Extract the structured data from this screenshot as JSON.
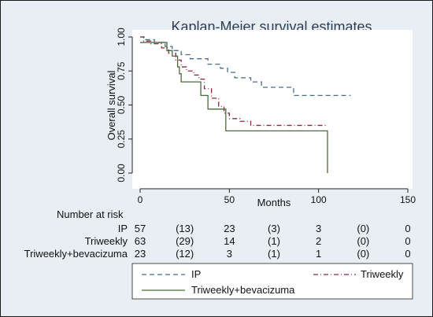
{
  "chart_data": {
    "type": "line",
    "title": "Kaplan-Meier survival estimates",
    "xlabel": "Months",
    "ylabel": "Overall survival",
    "xlim": [
      0,
      150
    ],
    "ylim": [
      0,
      1
    ],
    "x_ticks": [
      "0",
      "50",
      "100",
      "150"
    ],
    "y_ticks": [
      "0.00",
      "0.25",
      "0.50",
      "0.75",
      "1.00"
    ],
    "grid": false,
    "series": [
      {
        "name": "IP",
        "color": "#4a6a8c",
        "dash": "dashed",
        "points": [
          [
            0,
            1.0
          ],
          [
            3,
            0.98
          ],
          [
            8,
            0.96
          ],
          [
            14,
            0.93
          ],
          [
            18,
            0.9
          ],
          [
            23,
            0.87
          ],
          [
            28,
            0.84
          ],
          [
            38,
            0.8
          ],
          [
            45,
            0.77
          ],
          [
            49,
            0.74
          ],
          [
            53,
            0.7
          ],
          [
            62,
            0.67
          ],
          [
            68,
            0.63
          ],
          [
            78,
            0.63
          ],
          [
            86,
            0.57
          ],
          [
            90,
            0.57
          ],
          [
            118,
            0.57
          ]
        ]
      },
      {
        "name": "Triweekly",
        "color": "#8a2a3a",
        "dash": "dashdot",
        "points": [
          [
            0,
            1.0
          ],
          [
            2,
            0.97
          ],
          [
            6,
            0.95
          ],
          [
            12,
            0.92
          ],
          [
            16,
            0.88
          ],
          [
            20,
            0.83
          ],
          [
            23,
            0.78
          ],
          [
            26,
            0.75
          ],
          [
            30,
            0.72
          ],
          [
            33,
            0.69
          ],
          [
            36,
            0.62
          ],
          [
            40,
            0.55
          ],
          [
            44,
            0.49
          ],
          [
            47,
            0.44
          ],
          [
            50,
            0.4
          ],
          [
            56,
            0.38
          ],
          [
            62,
            0.35
          ],
          [
            105,
            0.35
          ]
        ]
      },
      {
        "name": "Triweekly+bevacizuma",
        "color": "#4a6a3a",
        "dash": "solid",
        "points": [
          [
            0,
            0.96
          ],
          [
            7,
            0.96
          ],
          [
            15,
            0.9
          ],
          [
            18,
            0.86
          ],
          [
            21,
            0.78
          ],
          [
            22,
            0.73
          ],
          [
            23,
            0.67
          ],
          [
            30,
            0.67
          ],
          [
            34,
            0.57
          ],
          [
            38,
            0.47
          ],
          [
            46,
            0.47
          ],
          [
            48,
            0.31
          ],
          [
            105,
            0.31
          ],
          [
            105,
            0.0
          ]
        ]
      }
    ]
  },
  "risk_table": {
    "title": "Number at risk",
    "rows": [
      {
        "label": "IP",
        "values": [
          "57",
          "(13)",
          "23",
          "(3)",
          "3",
          "(0)",
          "0"
        ]
      },
      {
        "label": "Triweekly",
        "values": [
          "63",
          "(29)",
          "14",
          "(1)",
          "2",
          "(0)",
          "0"
        ]
      },
      {
        "label": "Triweekly+bevacizuma",
        "values": [
          "23",
          "(12)",
          "3",
          "(1)",
          "1",
          "(0)",
          "0"
        ]
      }
    ]
  },
  "legend": {
    "placement": "bottom",
    "items": [
      "IP",
      "Triweekly",
      "Triweekly+bevacizuma"
    ]
  }
}
